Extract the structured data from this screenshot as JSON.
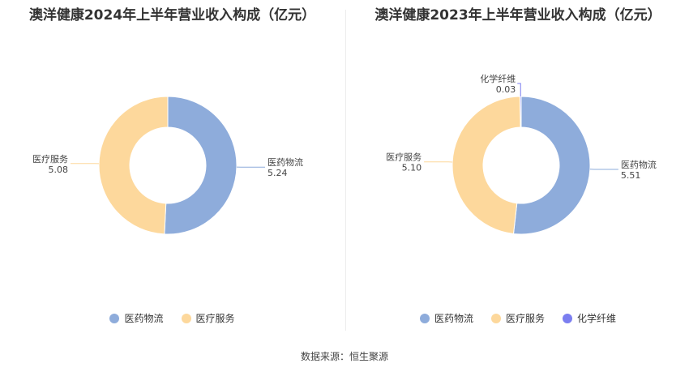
{
  "chart_data": [
    {
      "type": "pie",
      "title": "澳洋健康2024年上半年营业收入构成（亿元）",
      "categories": [
        "医药物流",
        "医疗服务"
      ],
      "values": [
        5.24,
        5.08
      ],
      "value_labels": [
        "5.24",
        "5.08"
      ],
      "colors": [
        "#8eacdb",
        "#fdd89c"
      ],
      "donut": true,
      "legend": "bottom"
    },
    {
      "type": "pie",
      "title": "澳洋健康2023年上半年营业收入构成（亿元）",
      "categories": [
        "医药物流",
        "医疗服务",
        "化学纤维"
      ],
      "values": [
        5.51,
        5.1,
        0.03
      ],
      "value_labels": [
        "5.51",
        "5.10",
        "0.03"
      ],
      "colors": [
        "#8eacdb",
        "#fdd89c",
        "#7b7ef0"
      ],
      "donut": true,
      "legend": "bottom"
    }
  ],
  "source": "数据来源：恒生聚源"
}
